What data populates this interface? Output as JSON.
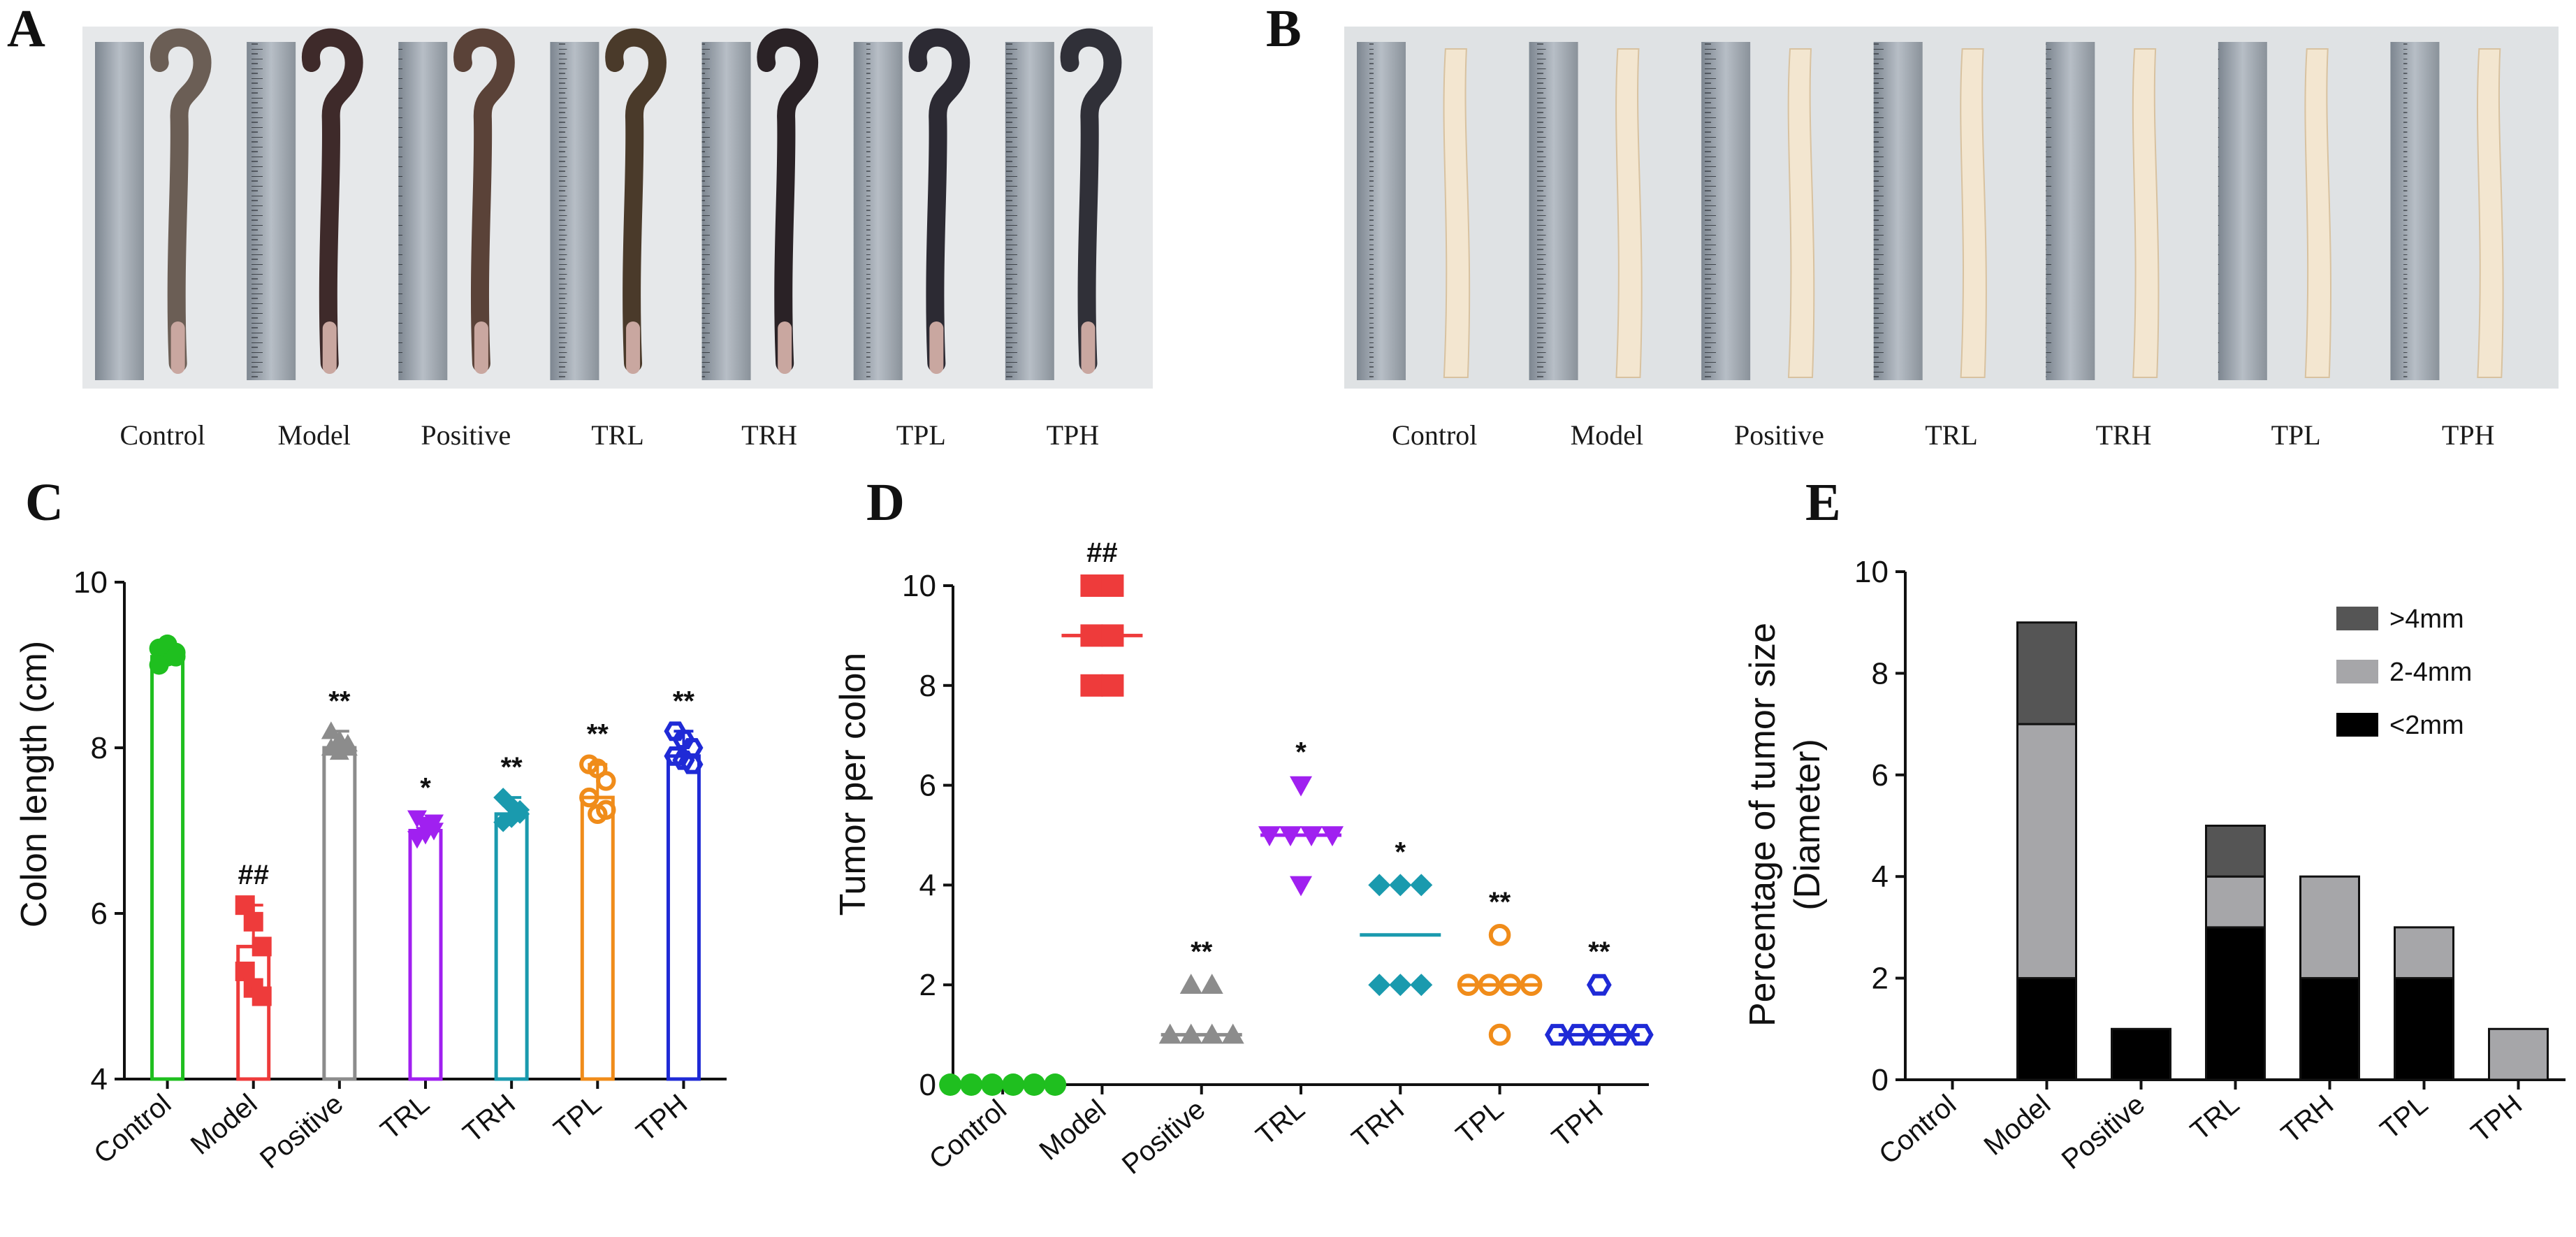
{
  "panels": {
    "A": {
      "label": "A",
      "groups": [
        "Control",
        "Model",
        "Positive",
        "TRL",
        "TRH",
        "TPL",
        "TPH"
      ]
    },
    "B": {
      "label": "B",
      "groups": [
        "Control",
        "Model",
        "Positive",
        "TRL",
        "TRH",
        "TPL",
        "TPH"
      ]
    },
    "C": {
      "label": "C"
    },
    "D": {
      "label": "D"
    },
    "E": {
      "label": "E"
    }
  },
  "colors": {
    "Control": "#1fbf1f",
    "Model": "#ee3b3b",
    "Positive": "#8c8c8c",
    "TRL": "#a020f0",
    "TRH": "#1a9aae",
    "TPL": "#f08c1a",
    "TPH": "#1f2ad6",
    "gt4": "#555555",
    "mid": "#a6a6a9",
    "lt2": "#000000"
  },
  "chart_data": [
    {
      "id": "C",
      "type": "scatter",
      "title": "",
      "xlabel": "",
      "ylabel": "Colon length (cm)",
      "categories": [
        "Control",
        "Model",
        "Positive",
        "TRL",
        "TRH",
        "TPL",
        "TPH"
      ],
      "ylim": [
        4,
        10
      ],
      "yticks": [
        "4",
        "6",
        "8",
        "10"
      ],
      "means": [
        9.1,
        5.6,
        8.0,
        7.0,
        7.2,
        7.4,
        7.9
      ],
      "points": [
        [
          9.2,
          9.1,
          9.15,
          9.0,
          9.25,
          9.1
        ],
        [
          6.1,
          5.9,
          5.6,
          5.3,
          5.1,
          5.0
        ],
        [
          8.2,
          8.1,
          8.0,
          8.0,
          7.95,
          8.05
        ],
        [
          7.15,
          7.05,
          7.0,
          6.9,
          6.95,
          7.1
        ],
        [
          7.4,
          7.3,
          7.2,
          7.1,
          7.15,
          7.25
        ],
        [
          7.8,
          7.75,
          7.6,
          7.4,
          7.2,
          7.25
        ],
        [
          8.2,
          8.1,
          8.0,
          7.9,
          7.85,
          7.8
        ]
      ],
      "annotations": [
        "",
        "##",
        "**",
        "*",
        "**",
        "**",
        "**"
      ]
    },
    {
      "id": "D",
      "type": "scatter",
      "title": "",
      "xlabel": "",
      "ylabel": "Tumor per colon",
      "categories": [
        "Control",
        "Model",
        "Positive",
        "TRL",
        "TRH",
        "TPL",
        "TPH"
      ],
      "ylim": [
        0,
        10
      ],
      "yticks": [
        "0",
        "2",
        "4",
        "6",
        "8",
        "10"
      ],
      "means": [
        0,
        9,
        1,
        5,
        3,
        2,
        1
      ],
      "points": [
        [
          0,
          0,
          0,
          0,
          0,
          0
        ],
        [
          10,
          10,
          9,
          9,
          8,
          8
        ],
        [
          2,
          2,
          1,
          1,
          1,
          1
        ],
        [
          6,
          5,
          5,
          5,
          5,
          4
        ],
        [
          4,
          4,
          4,
          2,
          2,
          2
        ],
        [
          3,
          2,
          2,
          2,
          2,
          1
        ],
        [
          2,
          1,
          1,
          1,
          1,
          1
        ]
      ],
      "annotations": [
        "",
        "##",
        "**",
        "*",
        "*",
        "**",
        "**"
      ]
    },
    {
      "id": "E",
      "type": "bar",
      "stacked": true,
      "title": "",
      "xlabel": "",
      "ylabel": "Percentage of tumor size",
      "ylabel2": "(Diameter)",
      "categories": [
        "Control",
        "Model",
        "Positive",
        "TRL",
        "TRH",
        "TPL",
        "TPH"
      ],
      "ylim": [
        0,
        10
      ],
      "yticks": [
        "0",
        "2",
        "4",
        "6",
        "8",
        "10"
      ],
      "series": [
        {
          "name": "<2mm",
          "values": [
            0,
            2,
            1,
            3,
            2,
            2,
            0
          ]
        },
        {
          "name": "2-4mm",
          "values": [
            0,
            5,
            0,
            1,
            2,
            1,
            1
          ]
        },
        {
          "name": ">4mm",
          "values": [
            0,
            2,
            0,
            1,
            0,
            0,
            0
          ]
        }
      ],
      "legend": [
        ">4mm",
        "2-4mm",
        "<2mm"
      ],
      "legend_position": "top-right"
    }
  ]
}
